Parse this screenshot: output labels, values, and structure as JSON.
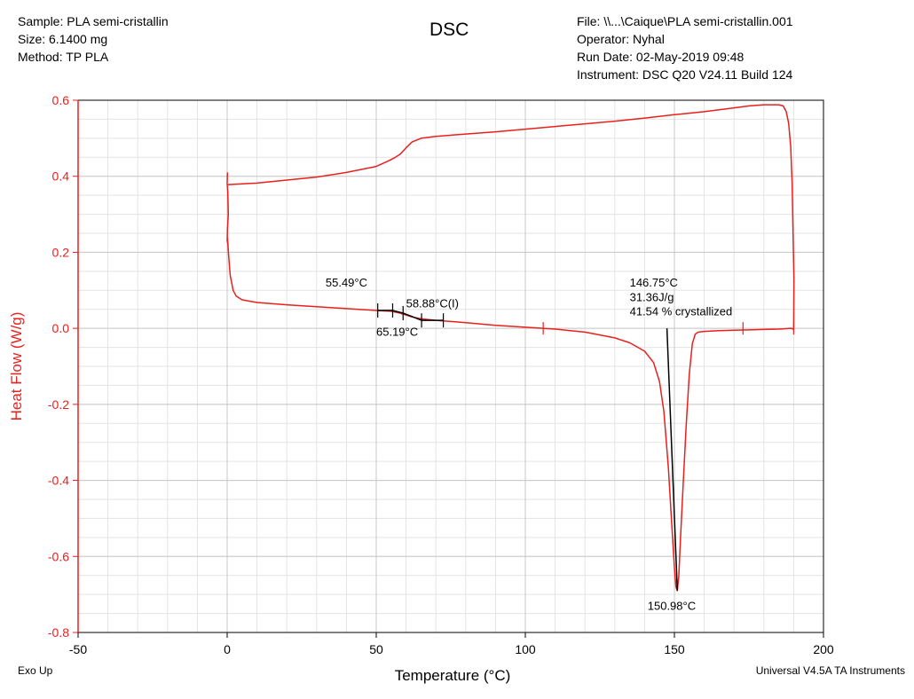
{
  "header": {
    "left": [
      "Sample: PLA semi-cristallin",
      "Size:  6.1400 mg",
      "Method: TP PLA"
    ],
    "title": "DSC",
    "right": [
      "File: \\\\...\\Caique\\PLA semi-cristallin.001",
      "Operator: Nyhal",
      "Run Date: 02-May-2019 09:48",
      "Instrument: DSC Q20 V24.11 Build 124"
    ]
  },
  "footer": {
    "left": "Exo Up",
    "right": "Universal V4.5A TA Instruments"
  },
  "colors": {
    "curve": "#e8201e",
    "ylabel": "#e8201e",
    "grid": "#c8c8c8",
    "annotation": "#000000"
  },
  "chart_data": {
    "type": "line",
    "xlabel": "Temperature (°C)",
    "ylabel": "Heat Flow (W/g)",
    "xlim": [
      -50,
      200
    ],
    "ylim": [
      -0.8,
      0.6
    ],
    "xticks": [
      -50,
      0,
      50,
      100,
      150,
      200
    ],
    "yticks": [
      0.6,
      0.4,
      0.2,
      0.0,
      -0.2,
      -0.4,
      -0.6,
      -0.8
    ],
    "ytick_labels": [
      "0.6",
      "0.4",
      "0.2",
      "0.0",
      "-0.2",
      "-0.4",
      "-0.6",
      "-0.8"
    ],
    "grid": true,
    "series": [
      {
        "x": [
          0.1,
          0.5,
          1.0,
          2.0,
          3.0,
          5.0,
          10,
          20,
          30,
          40,
          50,
          55,
          58,
          60,
          62,
          65,
          70,
          80,
          90,
          100,
          110,
          120,
          130,
          135,
          140,
          143,
          145,
          146.5,
          148,
          149,
          150,
          150.5,
          150.98,
          151.5,
          152,
          153,
          154,
          155,
          156,
          157,
          158,
          160,
          165,
          170,
          175,
          180,
          185,
          187,
          189,
          190,
          190.1
        ],
        "y": [
          0.24,
          0.19,
          0.14,
          0.1,
          0.085,
          0.075,
          0.068,
          0.062,
          0.057,
          0.052,
          0.047,
          0.045,
          0.04,
          0.035,
          0.03,
          0.025,
          0.021,
          0.015,
          0.008,
          0.003,
          -0.002,
          -0.01,
          -0.025,
          -0.038,
          -0.06,
          -0.09,
          -0.14,
          -0.22,
          -0.37,
          -0.5,
          -0.63,
          -0.68,
          -0.69,
          -0.65,
          -0.56,
          -0.4,
          -0.25,
          -0.12,
          -0.04,
          -0.015,
          -0.01,
          -0.008,
          -0.006,
          -0.005,
          -0.004,
          -0.003,
          -0.002,
          -0.001,
          0.0,
          -0.002,
          0.13
        ]
      },
      {
        "x": [
          190.1,
          189.8,
          189.5,
          189.0,
          188.3,
          187.5,
          186.5,
          185,
          180,
          175,
          170,
          160,
          150,
          140,
          130,
          120,
          110,
          100,
          90,
          80,
          70,
          65,
          62,
          60,
          59,
          58,
          56,
          54,
          52,
          50,
          40,
          30,
          20,
          10,
          5,
          0.5,
          0.2
        ],
        "y": [
          0.13,
          0.25,
          0.38,
          0.48,
          0.54,
          0.57,
          0.585,
          0.588,
          0.588,
          0.585,
          0.58,
          0.57,
          0.562,
          0.553,
          0.545,
          0.538,
          0.531,
          0.524,
          0.517,
          0.511,
          0.505,
          0.5,
          0.49,
          0.475,
          0.466,
          0.458,
          0.448,
          0.44,
          0.433,
          0.426,
          0.41,
          0.398,
          0.39,
          0.382,
          0.38,
          0.378,
          0.378
        ]
      },
      {
        "x": [
          0.1,
          0.0,
          0.2,
          0.4,
          0.1,
          0.0,
          0.3
        ],
        "y": [
          0.41,
          0.38,
          0.36,
          0.3,
          0.26,
          0.23,
          0.22
        ]
      }
    ],
    "annotations": [
      {
        "text": "55.49°C",
        "x": 33,
        "y": 0.11
      },
      {
        "text": "58.88°C(I)",
        "x": 60,
        "y": 0.055
      },
      {
        "text": "65.19°C",
        "x": 50,
        "y": -0.02
      },
      {
        "text": "146.75°C",
        "x": 135,
        "y": 0.11
      },
      {
        "text": "31.36J/g",
        "x": 135,
        "y": 0.072
      },
      {
        "text": "41.54 % crystallized",
        "x": 135,
        "y": 0.034
      },
      {
        "text": "150.98°C",
        "x": 141,
        "y": -0.74
      }
    ],
    "tg_line": {
      "x": [
        50.5,
        55.5,
        59,
        62,
        65.2,
        72.5
      ],
      "y": [
        0.047,
        0.047,
        0.04,
        0.031,
        0.021,
        0.021
      ]
    },
    "tg_ticks": [
      50.5,
      55.5,
      59,
      65.2,
      72.5
    ],
    "melt_line": {
      "x": [
        147.5,
        150.98
      ],
      "y": [
        0.0,
        -0.69
      ]
    },
    "curve_ticks": [
      106,
      173,
      190
    ]
  }
}
